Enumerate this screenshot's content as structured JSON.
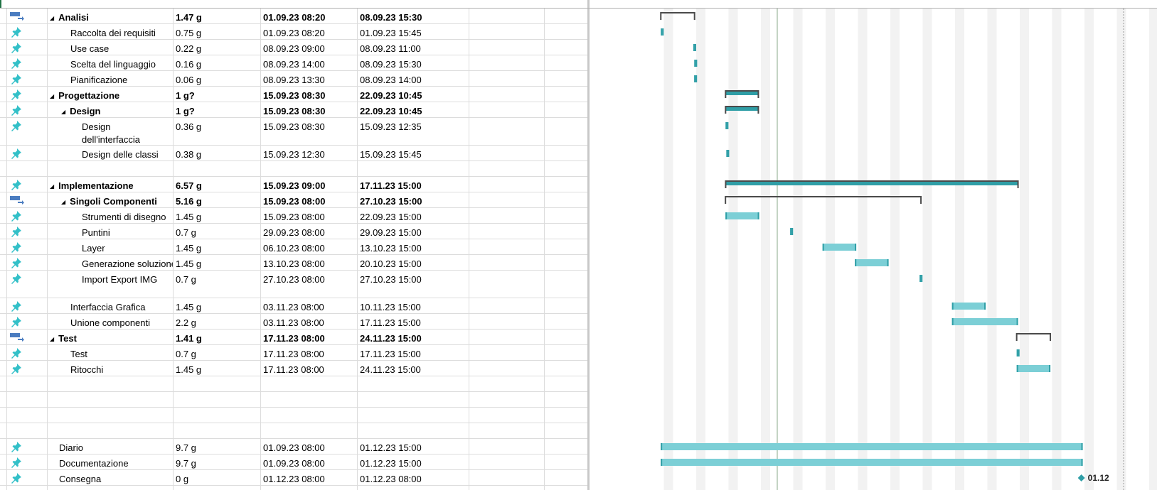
{
  "tasks": [
    {
      "name": "Analisi",
      "duration": "1.47 g",
      "start": "01.09.23 08:20",
      "finish": "08.09.23 15:30",
      "bold": true,
      "summary": true,
      "level": 0,
      "mode": "manual"
    },
    {
      "name": "Raccolta dei requisiti",
      "duration": "0.75 g",
      "start": "01.09.23 08:20",
      "finish": "01.09.23 15:45",
      "level": 1,
      "mode": "pin"
    },
    {
      "name": "Use case",
      "duration": "0.22 g",
      "start": "08.09.23 09:00",
      "finish": "08.09.23 11:00",
      "level": 1,
      "mode": "pin"
    },
    {
      "name": "Scelta del linguaggio",
      "duration": "0.16 g",
      "start": "08.09.23 14:00",
      "finish": "08.09.23 15:30",
      "level": 1,
      "mode": "pin"
    },
    {
      "name": "Pianificazione",
      "duration": "0.06 g",
      "start": "08.09.23 13:30",
      "finish": "08.09.23 14:00",
      "level": 1,
      "mode": "pin"
    },
    {
      "name": "Progettazione",
      "duration": "1 g?",
      "start": "15.09.23 08:30",
      "finish": "22.09.23 10:45",
      "bold": true,
      "summary": true,
      "level": 0,
      "mode": "pin"
    },
    {
      "name": "Design",
      "duration": "1 g?",
      "start": "15.09.23 08:30",
      "finish": "22.09.23 10:45",
      "bold": true,
      "summary": true,
      "level": 1,
      "mode": "pin"
    },
    {
      "name": "Design dell'interfaccia",
      "duration": "0.36 g",
      "start": "15.09.23 08:30",
      "finish": "15.09.23 12:35",
      "level": 2,
      "mode": "pin",
      "tall": true
    },
    {
      "name": "Design delle classi",
      "duration": "0.38 g",
      "start": "15.09.23 12:30",
      "finish": "15.09.23 15:45",
      "level": 2,
      "mode": "pin"
    },
    {
      "name": "",
      "duration": "",
      "start": "",
      "finish": "",
      "level": 0,
      "mode": "none"
    },
    {
      "name": "Implementazione",
      "duration": "6.57 g",
      "start": "15.09.23 09:00",
      "finish": "17.11.23 15:00",
      "bold": true,
      "summary": true,
      "level": 0,
      "mode": "pin"
    },
    {
      "name": "Singoli Componenti",
      "duration": "5.16 g",
      "start": "15.09.23 08:00",
      "finish": "27.10.23 15:00",
      "bold": true,
      "summary": true,
      "level": 1,
      "mode": "manual"
    },
    {
      "name": "Strumenti di disegno",
      "duration": "1.45 g",
      "start": "15.09.23 08:00",
      "finish": "22.09.23 15:00",
      "level": 2,
      "mode": "pin"
    },
    {
      "name": "Puntini",
      "duration": "0.7 g",
      "start": "29.09.23 08:00",
      "finish": "29.09.23 15:00",
      "level": 2,
      "mode": "pin"
    },
    {
      "name": "Layer",
      "duration": "1.45 g",
      "start": "06.10.23 08:00",
      "finish": "13.10.23 15:00",
      "level": 2,
      "mode": "pin"
    },
    {
      "name": "Generazione soluzione",
      "duration": "1.45 g",
      "start": "13.10.23 08:00",
      "finish": "20.10.23 15:00",
      "level": 2,
      "mode": "pin"
    },
    {
      "name": "Import Export IMG",
      "duration": "0.7 g",
      "start": "27.10.23 08:00",
      "finish": "27.10.23 15:00",
      "level": 2,
      "mode": "pin",
      "tall": true
    },
    {
      "name": "Interfaccia Grafica",
      "duration": "1.45 g",
      "start": "03.11.23 08:00",
      "finish": "10.11.23 15:00",
      "level": 1,
      "mode": "pin"
    },
    {
      "name": "Unione componenti",
      "duration": "2.2 g",
      "start": "03.11.23 08:00",
      "finish": "17.11.23 15:00",
      "level": 1,
      "mode": "pin"
    },
    {
      "name": "Test",
      "duration": "1.41 g",
      "start": "17.11.23 08:00",
      "finish": "24.11.23 15:00",
      "bold": true,
      "summary": true,
      "level": 0,
      "mode": "manual"
    },
    {
      "name": "Test",
      "duration": "0.7 g",
      "start": "17.11.23 08:00",
      "finish": "17.11.23 15:00",
      "level": 1,
      "mode": "pin"
    },
    {
      "name": "Ritocchi",
      "duration": "1.45 g",
      "start": "17.11.23 08:00",
      "finish": "24.11.23 15:00",
      "level": 1,
      "mode": "pin"
    },
    {
      "name": "",
      "duration": "",
      "start": "",
      "finish": "",
      "level": 0,
      "mode": "none"
    },
    {
      "name": "",
      "duration": "",
      "start": "",
      "finish": "",
      "level": 0,
      "mode": "none"
    },
    {
      "name": "",
      "duration": "",
      "start": "",
      "finish": "",
      "level": 0,
      "mode": "none"
    },
    {
      "name": "",
      "duration": "",
      "start": "",
      "finish": "",
      "level": 0,
      "mode": "none"
    },
    {
      "name": "Diario",
      "duration": "9.7 g",
      "start": "01.09.23 08:00",
      "finish": "01.12.23 15:00",
      "level": 0,
      "mode": "pin"
    },
    {
      "name": "Documentazione",
      "duration": "9.7 g",
      "start": "01.09.23 08:00",
      "finish": "01.12.23 15:00",
      "level": 0,
      "mode": "pin"
    },
    {
      "name": "Consegna",
      "duration": "0 g",
      "start": "01.12.23 08:00",
      "finish": "01.12.23 08:00",
      "level": 0,
      "mode": "pin",
      "milestone": true
    }
  ],
  "milestone_label": "01.12",
  "colors": {
    "bar": "#7ccfd6",
    "bar_dark": "#2f9ea6",
    "summary": "#4a4a4a",
    "pin": "#33c0c8",
    "manual": "#4a7cc0",
    "weekend": "#f2f2f2",
    "grid": "#dcdcdc",
    "today": "#8aa88a"
  }
}
